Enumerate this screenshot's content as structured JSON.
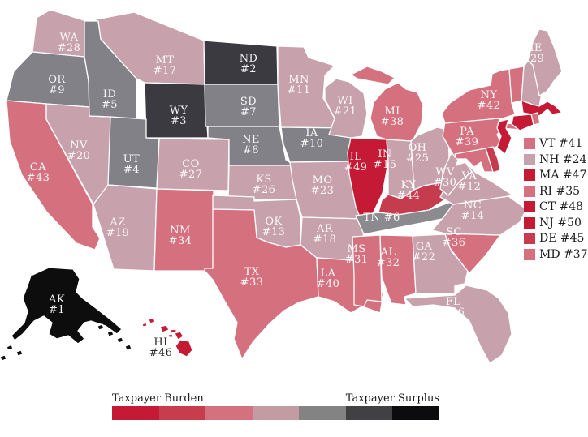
{
  "chart_data": {
    "type": "choropleth",
    "title": "",
    "scale": {
      "left_label": "Taxpayer Burden",
      "right_label": "Taxpayer Surplus",
      "colors": [
        "#C41A34",
        "#C73D4D",
        "#D3717F",
        "#C29BA3",
        "#838383",
        "#414144",
        "#0C0C0E"
      ]
    },
    "side_legend": [
      {
        "label": "VT #41",
        "color": "#D5717F"
      },
      {
        "label": "NH #24",
        "color": "#C7A1AB"
      },
      {
        "label": "MA #47",
        "color": "#C41A35"
      },
      {
        "label": "RI #35",
        "color": "#D5717F"
      },
      {
        "label": "CT #48",
        "color": "#C41A35"
      },
      {
        "label": "NJ #50",
        "color": "#C41A35"
      },
      {
        "label": "DE #45",
        "color": "#C63C4F"
      },
      {
        "label": "MD #37",
        "color": "#D5717F"
      }
    ],
    "states": [
      {
        "abbr": "WA",
        "rank": 28,
        "rank_text": "#28",
        "fill": "#C7A1AB",
        "label_fill": "#FFFFFF"
      },
      {
        "abbr": "OR",
        "rank": 9,
        "rank_text": "#9",
        "fill": "#818187",
        "label_fill": "#FFFFFF"
      },
      {
        "abbr": "CA",
        "rank": 43,
        "rank_text": "#43",
        "fill": "#D5717F",
        "label_fill": "#FFFFFF"
      },
      {
        "abbr": "NV",
        "rank": 20,
        "rank_text": "#20",
        "fill": "#C7A1AB",
        "label_fill": "#FFFFFF"
      },
      {
        "abbr": "ID",
        "rank": 5,
        "rank_text": "#5",
        "fill": "#818187",
        "label_fill": "#FFFFFF"
      },
      {
        "abbr": "MT",
        "rank": 17,
        "rank_text": "#17",
        "fill": "#C7A1AB",
        "label_fill": "#FFFFFF"
      },
      {
        "abbr": "WY",
        "rank": 3,
        "rank_text": "#3",
        "fill": "#3A3A40",
        "label_fill": "#FFFFFF"
      },
      {
        "abbr": "UT",
        "rank": 4,
        "rank_text": "#4",
        "fill": "#818187",
        "label_fill": "#FFFFFF"
      },
      {
        "abbr": "CO",
        "rank": 27,
        "rank_text": "#27",
        "fill": "#C7A1AB",
        "label_fill": "#FFFFFF"
      },
      {
        "abbr": "AZ",
        "rank": 19,
        "rank_text": "#19",
        "fill": "#C7A1AB",
        "label_fill": "#FFFFFF"
      },
      {
        "abbr": "NM",
        "rank": 34,
        "rank_text": "#34",
        "fill": "#D5717F",
        "label_fill": "#FFFFFF"
      },
      {
        "abbr": "ND",
        "rank": 2,
        "rank_text": "#2",
        "fill": "#3A3A40",
        "label_fill": "#FFFFFF"
      },
      {
        "abbr": "SD",
        "rank": 7,
        "rank_text": "#7",
        "fill": "#818187",
        "label_fill": "#FFFFFF"
      },
      {
        "abbr": "NE",
        "rank": 8,
        "rank_text": "#8",
        "fill": "#818187",
        "label_fill": "#FFFFFF"
      },
      {
        "abbr": "KS",
        "rank": 26,
        "rank_text": "#26",
        "fill": "#C7A1AB",
        "label_fill": "#FFFFFF"
      },
      {
        "abbr": "OK",
        "rank": 13,
        "rank_text": "#13",
        "fill": "#C7A1AB",
        "label_fill": "#FFFFFF"
      },
      {
        "abbr": "TX",
        "rank": 33,
        "rank_text": "#33",
        "fill": "#D5717F",
        "label_fill": "#FFFFFF"
      },
      {
        "abbr": "MN",
        "rank": 11,
        "rank_text": "#11",
        "fill": "#C7A1AB",
        "label_fill": "#FFFFFF"
      },
      {
        "abbr": "IA",
        "rank": 10,
        "rank_text": "#10",
        "fill": "#818187",
        "label_fill": "#FFFFFF"
      },
      {
        "abbr": "MO",
        "rank": 23,
        "rank_text": "#23",
        "fill": "#C7A1AB",
        "label_fill": "#FFFFFF"
      },
      {
        "abbr": "AR",
        "rank": 18,
        "rank_text": "#18",
        "fill": "#C7A1AB",
        "label_fill": "#FFFFFF"
      },
      {
        "abbr": "LA",
        "rank": 40,
        "rank_text": "#40",
        "fill": "#D5717F",
        "label_fill": "#FFFFFF"
      },
      {
        "abbr": "WI",
        "rank": 21,
        "rank_text": "#21",
        "fill": "#C7A1AB",
        "label_fill": "#FFFFFF"
      },
      {
        "abbr": "IL",
        "rank": 49,
        "rank_text": "#49",
        "fill": "#C41A35",
        "label_fill": "#FFFFFF"
      },
      {
        "abbr": "MS",
        "rank": 31,
        "rank_text": "#31",
        "fill": "#D5717F",
        "label_fill": "#FFFFFF"
      },
      {
        "abbr": "MI",
        "rank": 38,
        "rank_text": "#38",
        "fill": "#D5717F",
        "label_fill": "#FFFFFF"
      },
      {
        "abbr": "IN",
        "rank": 15,
        "rank_text": "#15",
        "fill": "#C7A1AB",
        "label_fill": "#FFFFFF"
      },
      {
        "abbr": "OH",
        "rank": 25,
        "rank_text": "#25",
        "fill": "#C7A1AB",
        "label_fill": "#FFFFFF"
      },
      {
        "abbr": "KY",
        "rank": 44,
        "rank_text": "#44",
        "fill": "#C63C4F",
        "label_fill": "#FFFFFF"
      },
      {
        "abbr": "TN",
        "rank": 6,
        "rank_text": "#6",
        "fill": "#8B8B8F",
        "label_fill": "#FFFFFF"
      },
      {
        "abbr": "AL",
        "rank": 32,
        "rank_text": "#32",
        "fill": "#D5717F",
        "label_fill": "#FFFFFF"
      },
      {
        "abbr": "GA",
        "rank": 22,
        "rank_text": "#22",
        "fill": "#C7A1AB",
        "label_fill": "#FFFFFF"
      },
      {
        "abbr": "SC",
        "rank": 36,
        "rank_text": "#36",
        "fill": "#D5717F",
        "label_fill": "#FFFFFF"
      },
      {
        "abbr": "NC",
        "rank": 14,
        "rank_text": "#14",
        "fill": "#C7A1AB",
        "label_fill": "#FFFFFF"
      },
      {
        "abbr": "VA",
        "rank": 12,
        "rank_text": "#12",
        "fill": "#C7A1AB",
        "label_fill": "#FFFFFF"
      },
      {
        "abbr": "WV",
        "rank": 30,
        "rank_text": "#30",
        "fill": "#C7A1AB",
        "label_fill": "#FFFFFF"
      },
      {
        "abbr": "FL",
        "rank": 16,
        "rank_text": "#16",
        "fill": "#C7A1AB",
        "label_fill": "#FFFFFF"
      },
      {
        "abbr": "PA",
        "rank": 39,
        "rank_text": "#39",
        "fill": "#D5717F",
        "label_fill": "#FFFFFF"
      },
      {
        "abbr": "NY",
        "rank": 42,
        "rank_text": "#42",
        "fill": "#D5717F",
        "label_fill": "#FFFFFF"
      },
      {
        "abbr": "NJ",
        "rank": 50,
        "rank_text": "#50",
        "fill": "#C41A35",
        "label_fill": "#FFFFFF"
      },
      {
        "abbr": "DE",
        "rank": 45,
        "rank_text": "#45",
        "fill": "#C63C4F",
        "label_fill": "#FFFFFF"
      },
      {
        "abbr": "MD",
        "rank": 37,
        "rank_text": "#37",
        "fill": "#D5717F",
        "label_fill": "#FFFFFF"
      },
      {
        "abbr": "VT",
        "rank": 41,
        "rank_text": "#41",
        "fill": "#D5717F",
        "label_fill": "#FFFFFF"
      },
      {
        "abbr": "NH",
        "rank": 24,
        "rank_text": "#24",
        "fill": "#C7A1AB",
        "label_fill": "#FFFFFF"
      },
      {
        "abbr": "ME",
        "rank": 29,
        "rank_text": "#29",
        "fill": "#C7A1AB",
        "label_fill": "#FFFFFF"
      },
      {
        "abbr": "MA",
        "rank": 47,
        "rank_text": "#47",
        "fill": "#C41A35",
        "label_fill": "#FFFFFF"
      },
      {
        "abbr": "RI",
        "rank": 35,
        "rank_text": "#35",
        "fill": "#D5717F",
        "label_fill": "#FFFFFF"
      },
      {
        "abbr": "CT",
        "rank": 48,
        "rank_text": "#48",
        "fill": "#C41A35",
        "label_fill": "#FFFFFF"
      },
      {
        "abbr": "AK",
        "rank": 1,
        "rank_text": "#1",
        "fill": "#0D0D0E",
        "label_fill": "#FFFFFF"
      },
      {
        "abbr": "HI",
        "rank": 46,
        "rank_text": "#46",
        "fill": "#C41A35",
        "label_fill": "#1A1A1A"
      }
    ]
  }
}
